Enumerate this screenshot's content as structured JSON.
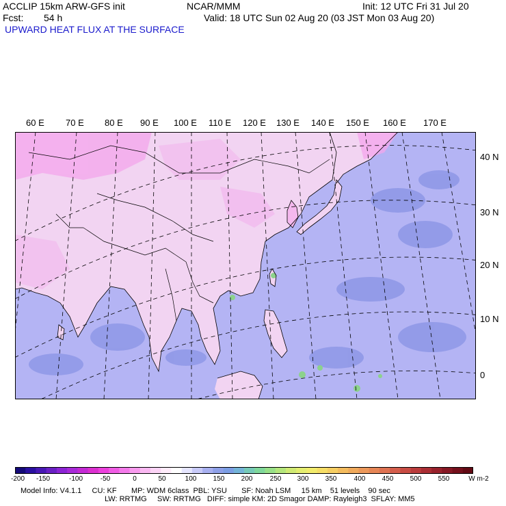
{
  "header": {
    "model": "ACCLIP 15km ARW-GFS init",
    "org": "NCAR/MMM",
    "init": "Init: 12 UTC Fri 31 Jul 20",
    "fcst_label": "Fcst:",
    "fcst_value": "54 h",
    "valid": "Valid: 18 UTC Sun 02 Aug 20 (03 JST Mon 03 Aug 20)",
    "field": "UPWARD HEAT FLUX AT THE SURFACE"
  },
  "map": {
    "lon_labels": [
      "60 E",
      "70 E",
      "80 E",
      "90 E",
      "100 E",
      "110 E",
      "120 E",
      "130 E",
      "140 E",
      "150 E",
      "160 E",
      "170 E"
    ],
    "lat_labels": [
      "40 N",
      "30 N",
      "20 N",
      "10 N",
      "0"
    ],
    "colors": {
      "land_pos": "#f2d4f2",
      "land_pink": "#f4a6ec",
      "ocean_neg": "#b4b4f4",
      "ocean_deep": "#8c96e6",
      "green": "#8cd28c",
      "boundary": "#000000",
      "grid": "#000000"
    }
  },
  "colorbar": {
    "labels": [
      "-200",
      "-150",
      "-100",
      "-50",
      "0",
      "50",
      "100",
      "150",
      "200",
      "250",
      "300",
      "350",
      "400",
      "450",
      "500",
      "550"
    ],
    "unit": "W m-2",
    "colors": [
      "#140a78",
      "#2a10a0",
      "#4818b4",
      "#6a20c4",
      "#8c24d4",
      "#a82ad8",
      "#c42ad4",
      "#dc30d0",
      "#ec40dc",
      "#f05ce4",
      "#f47aea",
      "#f89aee",
      "#fab8f2",
      "#fcd4f6",
      "#ffecfa",
      "#ffffff",
      "#e6e6ff",
      "#c8caf8",
      "#a8b0f0",
      "#8ea0e8",
      "#7c9ee4",
      "#74b4d8",
      "#76cab8",
      "#80d89c",
      "#98e088",
      "#b4e67c",
      "#d0ea74",
      "#e4ee70",
      "#f2ec6c",
      "#f6de66",
      "#f6ce62",
      "#f4bc5e",
      "#f0aa5c",
      "#ec985a",
      "#e68656",
      "#de7252",
      "#d45e4c",
      "#c84c44",
      "#ba3c3c",
      "#aa2e34",
      "#98222c",
      "#861824",
      "#74101c",
      "#620a14"
    ]
  },
  "model_info": {
    "line1": "Model Info: V4.1.1     CU: KF       MP: WDM 6class  PBL: YSU       SF: Noah LSM     15 km    51 levels    90 sec",
    "line2": "LW: RRTMG     SW: RRTMG   DIFF: simple KM: 2D Smagor DAMP: Rayleigh3  SFLAY: MM5"
  }
}
